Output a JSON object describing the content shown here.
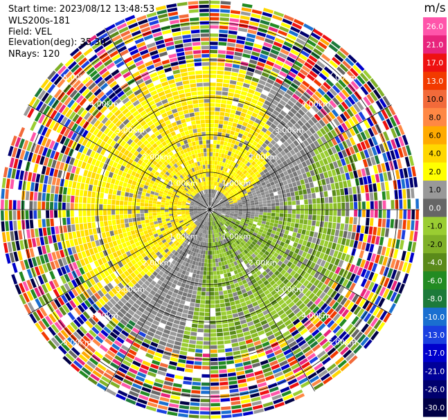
{
  "header": {
    "start_time": "Start time: 2023/08/12 13:48:53",
    "instrument": "WLS200s-181",
    "field": "Field: VEL",
    "elevation": "Elevation(deg): 35.30",
    "nrays": "NRays: 120"
  },
  "chart_data": {
    "type": "heatmap",
    "projection": "polar-ppi",
    "field": "VEL",
    "units": "m/s",
    "rays": 120,
    "range_ring_labels": [
      "1.00km",
      "2.00km",
      "3.00km",
      "4.00km",
      "5.00km"
    ],
    "range_rings_km": [
      1,
      2,
      3,
      4,
      5
    ],
    "max_range_km": 5.6,
    "colorbar": {
      "title": "m/s",
      "tick_labels": [
        "26.0",
        "21.0",
        "17.0",
        "13.0",
        "10.0",
        "8.0",
        "6.0",
        "4.0",
        "2.0",
        "1.0",
        "0.0",
        "-1.0",
        "-2.0",
        "-4.0",
        "-6.0",
        "-8.0",
        "-10.0",
        "-13.0",
        "-17.0",
        "-21.0",
        "-26.0",
        "-30.0"
      ],
      "colors": [
        "#ff55aa",
        "#e8247c",
        "#ee1111",
        "#f23a00",
        "#f26a3a",
        "#ff8844",
        "#ffaa00",
        "#ffd700",
        "#ffff00",
        "#999999",
        "#666666",
        "#9acd32",
        "#7fb027",
        "#5a8a1a",
        "#228b22",
        "#1c7a3a",
        "#1a6fd0",
        "#1a40e0",
        "#0000cc",
        "#000099",
        "#00006e",
        "#000045"
      ]
    },
    "pattern": {
      "positive_sector_deg": 270,
      "negative_sector_deg": 90,
      "noise_start_km": 3.6
    }
  }
}
